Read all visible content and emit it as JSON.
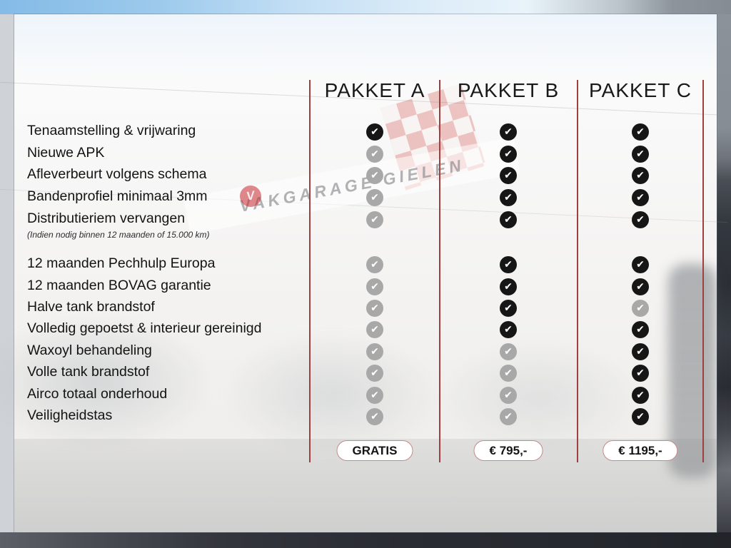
{
  "packages": [
    {
      "name": "PAKKET A",
      "price": "GRATIS"
    },
    {
      "name": "PAKKET B",
      "price": "€ 795,-"
    },
    {
      "name": "PAKKET C",
      "price": "€ 1195,-"
    }
  ],
  "features": [
    {
      "label": "Tenaamstelling & vrijwaring",
      "included": [
        true,
        true,
        true
      ]
    },
    {
      "label": "Nieuwe APK",
      "included": [
        false,
        true,
        true
      ]
    },
    {
      "label": "Afleverbeurt volgens schema",
      "included": [
        false,
        true,
        true
      ]
    },
    {
      "label": "Bandenprofiel minimaal 3mm",
      "included": [
        false,
        true,
        true
      ]
    },
    {
      "label": "Distributieriem vervangen",
      "note": "(Indien nodig binnen 12 maanden of 15.000 km)",
      "included": [
        false,
        true,
        true
      ]
    },
    {
      "label": "12 maanden Pechhulp Europa",
      "included": [
        false,
        true,
        true
      ]
    },
    {
      "label": "12 maanden BOVAG garantie",
      "included": [
        false,
        true,
        true
      ]
    },
    {
      "label": "Halve tank brandstof",
      "included": [
        false,
        true,
        false
      ]
    },
    {
      "label": "Volledig gepoetst & interieur gereinigd",
      "included": [
        false,
        true,
        true
      ]
    },
    {
      "label": "Waxoyl behandeling",
      "included": [
        false,
        false,
        true
      ]
    },
    {
      "label": "Volle tank brandstof",
      "included": [
        false,
        false,
        true
      ]
    },
    {
      "label": "Airco totaal onderhoud",
      "included": [
        false,
        false,
        true
      ]
    },
    {
      "label": "Veiligheidstas",
      "included": [
        false,
        false,
        true
      ]
    }
  ],
  "background": {
    "sign_text": "VAKGARAGE GIELEN",
    "logo_letter": "V"
  },
  "colors": {
    "divider_red": "#9e4040",
    "pill_border": "#c48a8a",
    "check_included": "#161616",
    "check_excluded": "#a8a8a8",
    "header_text": "#191919"
  }
}
